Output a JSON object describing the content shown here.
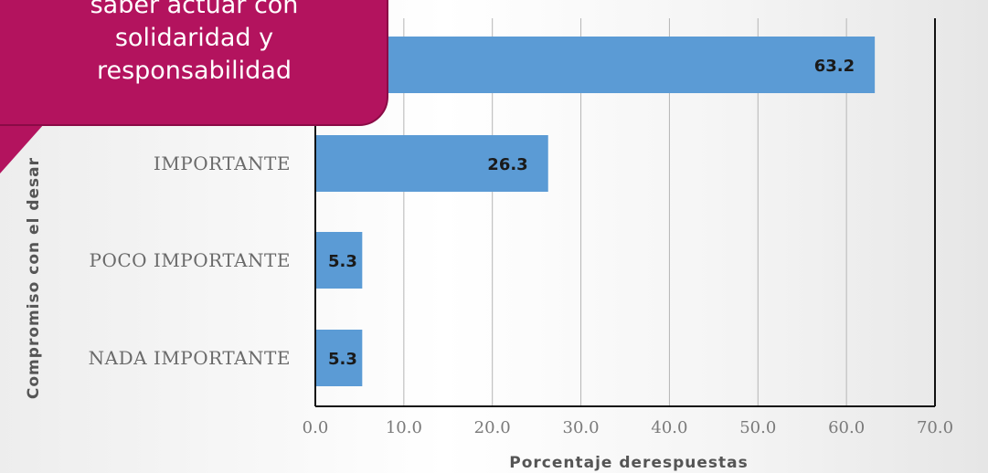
{
  "callout": {
    "line1": "saber  actuar con",
    "line2": "solidaridad y",
    "line3": "responsabilidad"
  },
  "chart_data": {
    "type": "bar",
    "orientation": "horizontal",
    "title": "",
    "xlabel": "Porcentaje derespuestas",
    "ylabel": "Compromiso con el desar",
    "categories": [
      "",
      "IMPORTANTE",
      "POCO IMPORTANTE",
      "NADA IMPORTANTE"
    ],
    "values": [
      63.2,
      26.3,
      5.3,
      5.3
    ],
    "data_labels": [
      "63.2",
      "26.3",
      "5.3",
      "5.3"
    ],
    "xlim": [
      0,
      70
    ],
    "x_ticks": [
      "0.0",
      "10.0",
      "20.0",
      "30.0",
      "40.0",
      "50.0",
      "60.0",
      "70.0"
    ],
    "grid": "vertical",
    "bar_color": "#5b9bd5",
    "legend": "none"
  },
  "colors": {
    "callout": "#b3135e",
    "bar": "#5b9bd5",
    "grid": "#b5b5b5"
  }
}
